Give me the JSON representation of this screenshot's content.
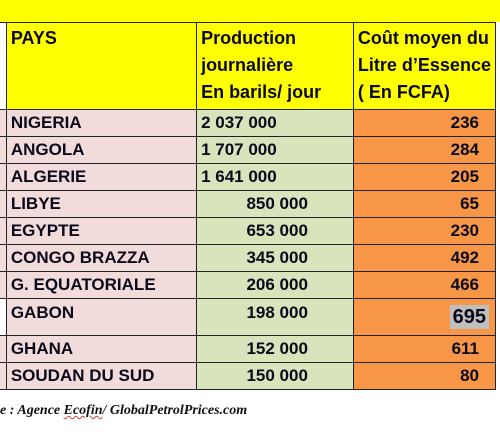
{
  "headers": {
    "pays": "PAYS",
    "production": [
      "Production",
      "journalière",
      "En barils/ jour"
    ],
    "cout": [
      "Coût moyen du",
      "Litre d’Essence",
      "( En FCFA)"
    ]
  },
  "rows": [
    {
      "pays": "NIGERIA",
      "production": "2 037 000",
      "cout": "236"
    },
    {
      "pays": "ANGOLA",
      "production": "1 707 000",
      "cout": "284"
    },
    {
      "pays": "ALGERIE",
      "production": "1 641 000",
      "cout": "205"
    },
    {
      "pays": "LIBYE",
      "production": "850 000",
      "cout": "65"
    },
    {
      "pays": "EGYPTE",
      "production": "653 000",
      "cout": "230"
    },
    {
      "pays": "CONGO BRAZZA",
      "production": "345 000",
      "cout": "492"
    },
    {
      "pays": "G. EQUATORIALE",
      "production": "206 000",
      "cout": "466"
    },
    {
      "pays": "GABON",
      "production": "198 000",
      "cout": "695"
    },
    {
      "pays": "GHANA",
      "production": "152 000",
      "cout": "611"
    },
    {
      "pays": "SOUDAN DU SUD",
      "production": "150 000",
      "cout": "80"
    }
  ],
  "source": {
    "prefix": "e : Agence ",
    "underlined": "Ecofin",
    "suffix": "/  GlobalPetrolPrices.com"
  },
  "colors": {
    "header_bg": "#ffff00",
    "pays_bg": "#f2dcdb",
    "production_bg": "#d8e4bc",
    "cout_bg": "#f79646",
    "highlight_bg": "#bfbfbf"
  }
}
